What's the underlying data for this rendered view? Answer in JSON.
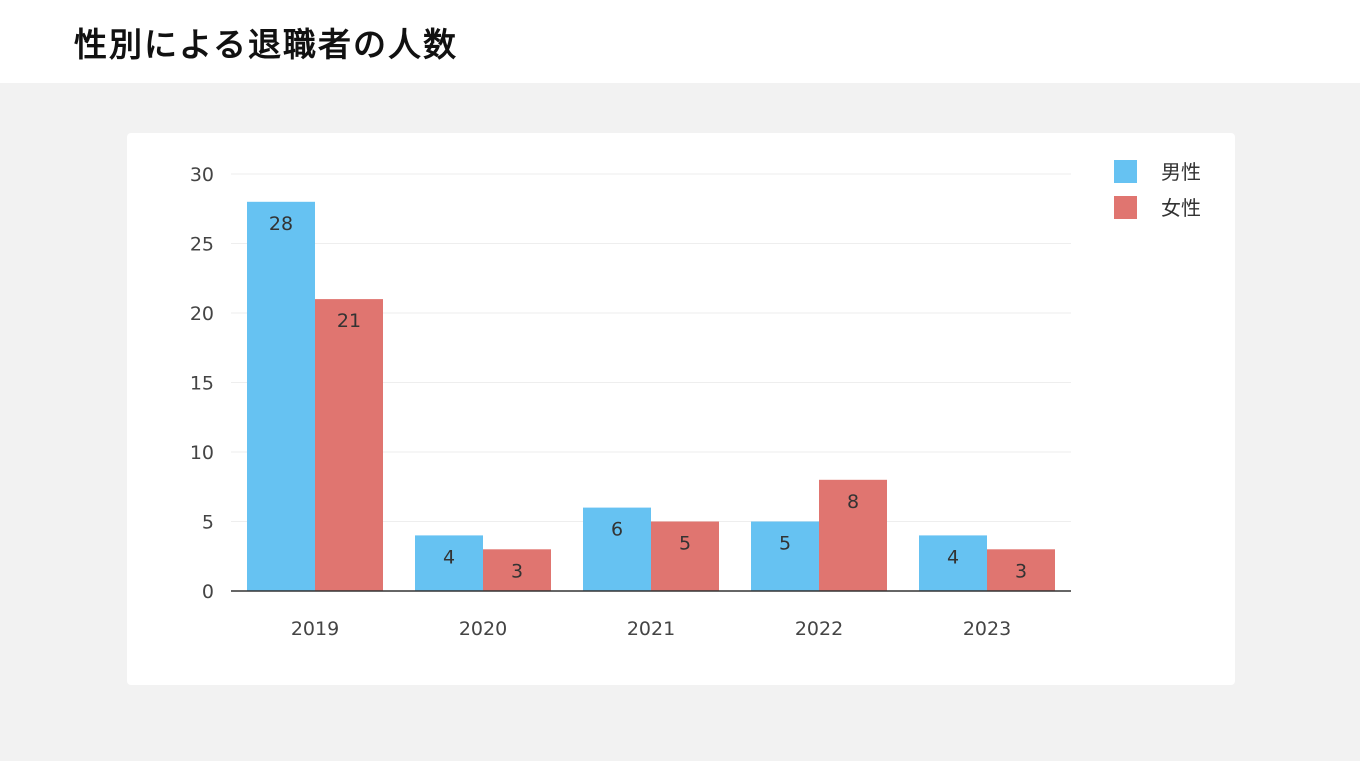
{
  "page": {
    "title": "性別による退職者の人数"
  },
  "chart_data": {
    "type": "bar",
    "title": "",
    "xlabel": "",
    "ylabel": "",
    "categories": [
      "2019",
      "2020",
      "2021",
      "2022",
      "2023"
    ],
    "series": [
      {
        "name": "男性",
        "values": [
          28,
          4,
          6,
          5,
          4
        ],
        "color": "#66c2f2"
      },
      {
        "name": "女性",
        "values": [
          21,
          3,
          5,
          8,
          3
        ],
        "color": "#e07570"
      }
    ],
    "ylim": [
      0,
      30
    ],
    "yticks": [
      0,
      5,
      10,
      15,
      20,
      25,
      30
    ],
    "grid": true,
    "data_labels": true,
    "legend_position": "top-right"
  }
}
